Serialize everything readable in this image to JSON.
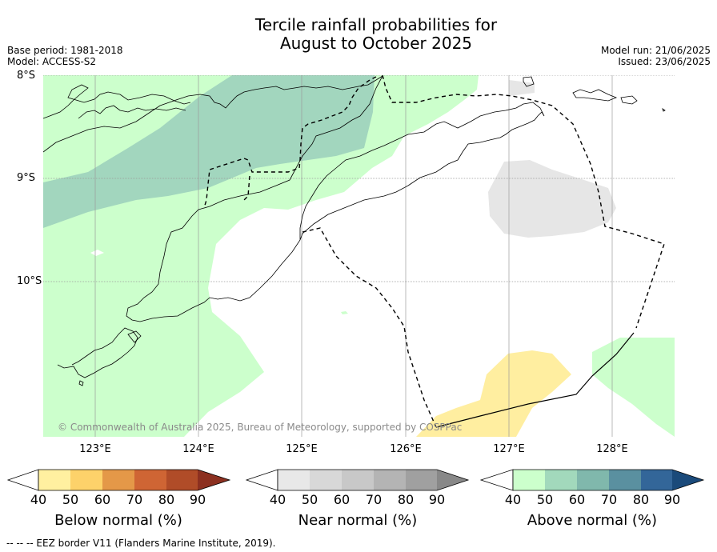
{
  "title": {
    "line1": "Tercile rainfall probabilities for",
    "line2": "August to October 2025"
  },
  "meta_left": {
    "base_period": "Base period: 1981-2018",
    "model": "Model: ACCESS-S2"
  },
  "meta_right": {
    "model_run": "Model run: 21/06/2025",
    "issued": "Issued: 23/06/2025"
  },
  "latitude_labels": [
    "8°S",
    "9°S",
    "10°S"
  ],
  "longitude_labels": [
    "123°E",
    "124°E",
    "125°E",
    "126°E",
    "127°E",
    "128°E"
  ],
  "copyright": "© Commonwealth of Australia 2025, Bureau of Meteorology, supported by COSPPac",
  "colorbars": [
    {
      "title": "Below normal (%)",
      "ticks": [
        "40",
        "50",
        "60",
        "70",
        "80",
        "90"
      ],
      "colors": [
        "#ffffff",
        "#fff0a0",
        "#fdd26a",
        "#e49848",
        "#cf6534",
        "#b04c28",
        "#8c3020"
      ]
    },
    {
      "title": "Near normal (%)",
      "ticks": [
        "40",
        "50",
        "60",
        "70",
        "80",
        "90"
      ],
      "colors": [
        "#ffffff",
        "#e8e8e8",
        "#d8d8d8",
        "#c8c8c8",
        "#b4b4b4",
        "#a0a0a0",
        "#888888"
      ]
    },
    {
      "title": "Above normal (%)",
      "ticks": [
        "40",
        "50",
        "60",
        "70",
        "80",
        "90"
      ],
      "colors": [
        "#ffffff",
        "#ccffcc",
        "#a2d9bc",
        "#80b8ac",
        "#5a90a0",
        "#336699",
        "#1a4a7a"
      ]
    }
  ],
  "footnote": "--  --  -- EEZ border V11 (Flanders Marine Institute, 2019).",
  "map_colors": {
    "above_40": "#ccffcc",
    "above_50": "#a2d6be",
    "near_40": "#e6e6e6",
    "below_40": "#ffeea0"
  }
}
